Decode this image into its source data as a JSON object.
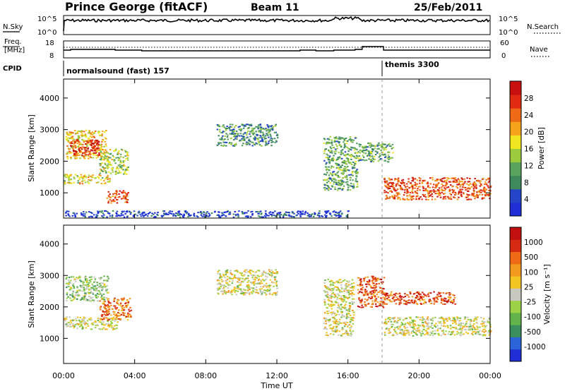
{
  "header": {
    "station": "Prince George (fitACF)",
    "beam": "Beam 11",
    "date": "25/Feb/2011"
  },
  "strips": {
    "nsky_label": "N.Sky",
    "nsky_ticks": [
      "10^5",
      "10^0"
    ],
    "nsearch_label": "N.Search",
    "nsearch_ticks": [
      "10^5",
      "10^0"
    ],
    "freq_label_1": "Freq.",
    "freq_label_2": "[MHz]",
    "freq_ticks": [
      "18",
      "8"
    ],
    "nave_label": "Nave",
    "nave_ticks": [
      "60",
      "0"
    ],
    "cpid_label": "CPID",
    "cpid_segments": [
      "normalsound (fast) 157",
      "themis 3300"
    ]
  },
  "colors": {
    "power": [
      "#1f2ed6",
      "#2545c8",
      "#3e8a5c",
      "#5aa35f",
      "#9ccc3e",
      "#f0e620",
      "#f5a31a",
      "#ef6a16",
      "#e02b12",
      "#c81010"
    ],
    "velocity": [
      "#1f2ed6",
      "#2b63d9",
      "#3a8f5f",
      "#62b44a",
      "#9dd246",
      "#c8c8c0",
      "#f2c520",
      "#f29a1e",
      "#ef6a16",
      "#d62a12",
      "#c21010"
    ]
  },
  "chart_data": [
    {
      "type": "heatmap",
      "panel": "power",
      "ylabel": "Slant Range [km]",
      "ylim": [
        200,
        4600
      ],
      "yticks": [
        "1000",
        "2000",
        "3000",
        "4000"
      ],
      "x_range_hours": [
        0,
        24
      ],
      "colorbar_label": "Power [dB]",
      "colorbar_ticks": [
        "4",
        "8",
        "12",
        "16",
        "20",
        "24",
        "28"
      ],
      "regions": [
        {
          "t0": 0.1,
          "t1": 2.4,
          "r0": 2100,
          "r1": 3000,
          "level": 0.6
        },
        {
          "t0": 0.3,
          "t1": 2.0,
          "r0": 2200,
          "r1": 2700,
          "level": 0.9
        },
        {
          "t0": 0.0,
          "t1": 2.6,
          "r0": 1300,
          "r1": 1600,
          "level": 0.55
        },
        {
          "t0": 2.0,
          "t1": 3.6,
          "r0": 1600,
          "r1": 2400,
          "level": 0.45
        },
        {
          "t0": 2.4,
          "t1": 3.6,
          "r0": 700,
          "r1": 1100,
          "level": 0.8
        },
        {
          "t0": 8.6,
          "t1": 12.0,
          "r0": 2500,
          "r1": 3200,
          "level": 0.3
        },
        {
          "t0": 14.6,
          "t1": 16.5,
          "r0": 1100,
          "r1": 2800,
          "level": 0.35
        },
        {
          "t0": 16.5,
          "t1": 18.5,
          "r0": 2000,
          "r1": 2600,
          "level": 0.35
        },
        {
          "t0": 18.0,
          "t1": 24.0,
          "r0": 800,
          "r1": 1500,
          "level": 0.8
        },
        {
          "t0": 0.0,
          "t1": 16.0,
          "r0": 250,
          "r1": 450,
          "level": 0.1
        }
      ]
    },
    {
      "type": "heatmap",
      "panel": "velocity",
      "ylabel": "Slant Range [km]",
      "ylim": [
        200,
        4600
      ],
      "yticks": [
        "1000",
        "2000",
        "3000",
        "4000"
      ],
      "xlabel": "Time UT",
      "xticks": [
        "00:00",
        "04:00",
        "08:00",
        "12:00",
        "16:00",
        "20:00",
        "00:00"
      ],
      "x_range_hours": [
        0,
        24
      ],
      "colorbar_label": "Velocity [m s⁻¹]",
      "colorbar_ticks": [
        "1000",
        "500",
        "100",
        "25",
        "-25",
        "-100",
        "-500",
        "-1000"
      ],
      "regions": [
        {
          "t0": 0.1,
          "t1": 2.5,
          "r0": 2200,
          "r1": 3000,
          "level": 0.4
        },
        {
          "t0": 0.0,
          "t1": 3.0,
          "r0": 1300,
          "r1": 1700,
          "level": 0.5
        },
        {
          "t0": 2.0,
          "t1": 3.8,
          "r0": 1600,
          "r1": 2300,
          "level": 0.75
        },
        {
          "t0": 8.6,
          "t1": 12.0,
          "r0": 2400,
          "r1": 3200,
          "level": 0.5
        },
        {
          "t0": 14.6,
          "t1": 16.3,
          "r0": 1100,
          "r1": 2900,
          "level": 0.5
        },
        {
          "t0": 16.5,
          "t1": 18.0,
          "r0": 2000,
          "r1": 3000,
          "level": 0.8
        },
        {
          "t0": 18.0,
          "t1": 22.0,
          "r0": 2100,
          "r1": 2500,
          "level": 0.8
        },
        {
          "t0": 18.0,
          "t1": 24.0,
          "r0": 1100,
          "r1": 1700,
          "level": 0.5
        }
      ]
    }
  ]
}
